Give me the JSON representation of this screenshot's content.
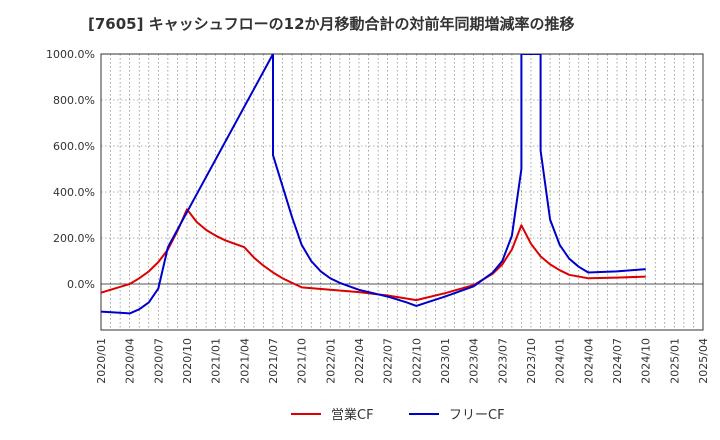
{
  "chart_data": {
    "type": "line",
    "title": "[7605]  キャッシュフローの12か月移動合計の対前年同期増減率の推移",
    "xlabel": "",
    "ylabel": "",
    "ylim": [
      -200,
      1000
    ],
    "grid": true,
    "legend_position": "bottom",
    "y_ticks": [
      {
        "value": 1000,
        "label": "1000.0%"
      },
      {
        "value": 800,
        "label": "800.0%"
      },
      {
        "value": 600,
        "label": "600.0%"
      },
      {
        "value": 400,
        "label": "400.0%"
      },
      {
        "value": 200,
        "label": "200.0%"
      },
      {
        "value": 0,
        "label": "0.0%"
      }
    ],
    "x_ticks": [
      "2020/01",
      "2020/04",
      "2020/07",
      "2020/10",
      "2021/01",
      "2021/04",
      "2021/07",
      "2021/10",
      "2022/01",
      "2022/04",
      "2022/07",
      "2022/10",
      "2023/01",
      "2023/04",
      "2023/07",
      "2023/10",
      "2024/01",
      "2024/04",
      "2024/07",
      "2024/10",
      "2025/01",
      "2025/04"
    ],
    "series": [
      {
        "name": "営業CF",
        "color": "#dd0000",
        "points": [
          [
            "2020/01",
            -38
          ],
          [
            "2020/04",
            0
          ],
          [
            "2020/05",
            25
          ],
          [
            "2020/06",
            55
          ],
          [
            "2020/07",
            95
          ],
          [
            "2020/08",
            150
          ],
          [
            "2020/09",
            230
          ],
          [
            "2020/10",
            325
          ],
          [
            "2020/11",
            270
          ],
          [
            "2020/12",
            235
          ],
          [
            "2021/01",
            210
          ],
          [
            "2021/02",
            190
          ],
          [
            "2021/03",
            175
          ],
          [
            "2021/04",
            160
          ],
          [
            "2021/05",
            115
          ],
          [
            "2021/06",
            80
          ],
          [
            "2021/07",
            50
          ],
          [
            "2021/08",
            25
          ],
          [
            "2021/09",
            5
          ],
          [
            "2021/10",
            -15
          ],
          [
            "2022/01",
            -25
          ],
          [
            "2022/04",
            -35
          ],
          [
            "2022/07",
            -50
          ],
          [
            "2022/10",
            -70
          ],
          [
            "2023/01",
            -40
          ],
          [
            "2023/04",
            -5
          ],
          [
            "2023/05",
            20
          ],
          [
            "2023/06",
            45
          ],
          [
            "2023/07",
            85
          ],
          [
            "2023/08",
            150
          ],
          [
            "2023/09",
            255
          ],
          [
            "2023/10",
            175
          ],
          [
            "2023/11",
            120
          ],
          [
            "2023/12",
            85
          ],
          [
            "2024/01",
            60
          ],
          [
            "2024/02",
            40
          ],
          [
            "2024/04",
            25
          ],
          [
            "2024/07",
            28
          ],
          [
            "2024/10",
            32
          ]
        ]
      },
      {
        "name": "フリーCF",
        "color": "#0000cc",
        "points": [
          [
            "2020/01",
            -120
          ],
          [
            "2020/04",
            -128
          ],
          [
            "2020/05",
            -110
          ],
          [
            "2020/06",
            -80
          ],
          [
            "2020/07",
            -20
          ],
          [
            "2020/08",
            160
          ],
          [
            "2021/07",
            1000
          ],
          [
            "2021/07",
            560
          ],
          [
            "2021/09",
            290
          ],
          [
            "2021/10",
            170
          ],
          [
            "2021/11",
            100
          ],
          [
            "2021/12",
            55
          ],
          [
            "2022/01",
            25
          ],
          [
            "2022/02",
            5
          ],
          [
            "2022/04",
            -25
          ],
          [
            "2022/07",
            -55
          ],
          [
            "2022/09",
            -80
          ],
          [
            "2022/10",
            -95
          ],
          [
            "2023/01",
            -55
          ],
          [
            "2023/04",
            -10
          ],
          [
            "2023/05",
            20
          ],
          [
            "2023/06",
            50
          ],
          [
            "2023/07",
            100
          ],
          [
            "2023/08",
            210
          ],
          [
            "2023/09",
            500
          ],
          [
            "2023/09",
            1000
          ],
          [
            "2023/11",
            1000
          ],
          [
            "2023/11",
            580
          ],
          [
            "2023/12",
            280
          ],
          [
            "2024/01",
            170
          ],
          [
            "2024/02",
            110
          ],
          [
            "2024/03",
            75
          ],
          [
            "2024/04",
            50
          ],
          [
            "2024/07",
            55
          ],
          [
            "2024/10",
            65
          ]
        ]
      }
    ]
  }
}
